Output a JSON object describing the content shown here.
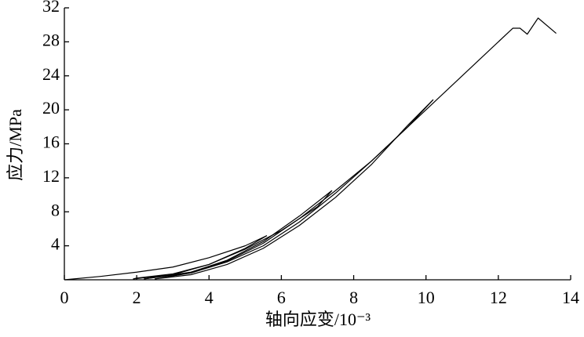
{
  "chart_data": {
    "type": "line",
    "xlabel": "轴向应变/10⁻³",
    "ylabel": "应力/MPa",
    "xlim": [
      0,
      14
    ],
    "xticks": [
      0,
      2,
      4,
      6,
      8,
      10,
      12,
      14
    ],
    "ylim": [
      0,
      32
    ],
    "yticks": [
      4,
      8,
      12,
      16,
      20,
      24,
      28,
      32
    ],
    "color": "#000000",
    "series": [
      {
        "x": [
          0,
          1,
          2,
          3,
          4,
          5,
          5.6
        ],
        "values": [
          0,
          0.4,
          0.9,
          1.5,
          2.6,
          4,
          5.2
        ]
      },
      {
        "x": [
          5.6,
          5,
          4,
          3,
          2,
          1.9
        ],
        "values": [
          5.2,
          3.7,
          1.8,
          0.7,
          0.2,
          0.1
        ]
      },
      {
        "x": [
          1.9,
          3,
          4,
          5,
          6,
          7,
          7.4
        ],
        "values": [
          0.1,
          0.6,
          1.8,
          3.6,
          5.8,
          8.6,
          10.5
        ]
      },
      {
        "x": [
          7.4,
          6.5,
          5.5,
          4.5,
          3.5,
          2.2
        ],
        "values": [
          10.5,
          7.5,
          4.5,
          2.3,
          0.9,
          0.1
        ]
      },
      {
        "x": [
          2.2,
          3.5,
          4.5,
          5.5,
          6.5,
          7.5,
          8.5,
          9.5,
          10.2
        ],
        "values": [
          0.1,
          0.8,
          2.2,
          4.3,
          7.2,
          10.5,
          14,
          18,
          21.2
        ]
      },
      {
        "x": [
          10.2,
          9.5,
          8.5,
          7.5,
          6.5,
          5.5,
          4.5,
          3.5,
          2.5
        ],
        "values": [
          21.2,
          18.2,
          13.6,
          9.7,
          6.4,
          3.7,
          1.8,
          0.6,
          0.1
        ]
      },
      {
        "x": [
          2.5,
          3.5,
          4.5,
          5.5,
          6.5,
          7.5,
          8.5,
          9.5,
          10.5,
          11.5,
          12.4,
          12.6,
          12.8,
          13.1,
          13.6
        ],
        "values": [
          0.1,
          0.8,
          2.1,
          4,
          6.8,
          10.2,
          14,
          18,
          22,
          26,
          29.6,
          29.6,
          28.9,
          30.8,
          29
        ]
      }
    ]
  }
}
